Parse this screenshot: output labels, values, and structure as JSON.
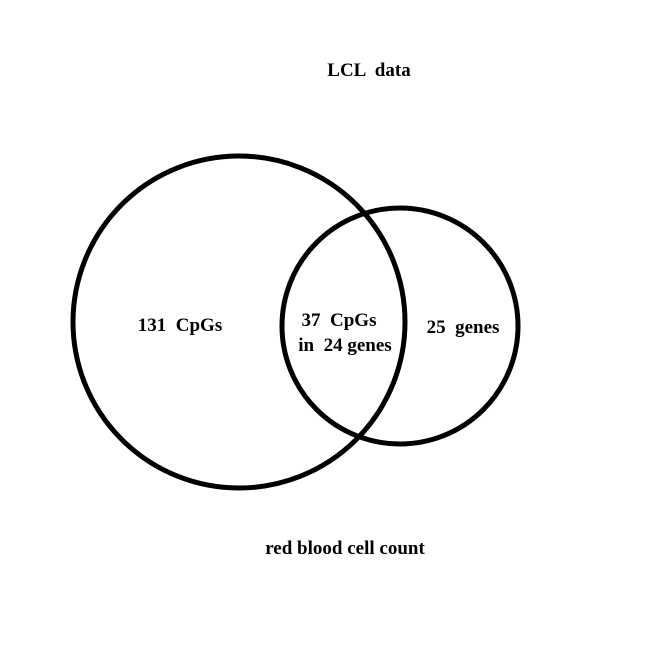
{
  "title": "LCL  data",
  "bottom_label": "red blood cell count",
  "stroke_color": "#000000",
  "background_color": "#ffffff",
  "regions": {
    "left_only": "131  CpGs",
    "overlap_line1": "37  CpGs",
    "overlap_line2": "in  24 genes",
    "right_only": "25  genes"
  }
}
